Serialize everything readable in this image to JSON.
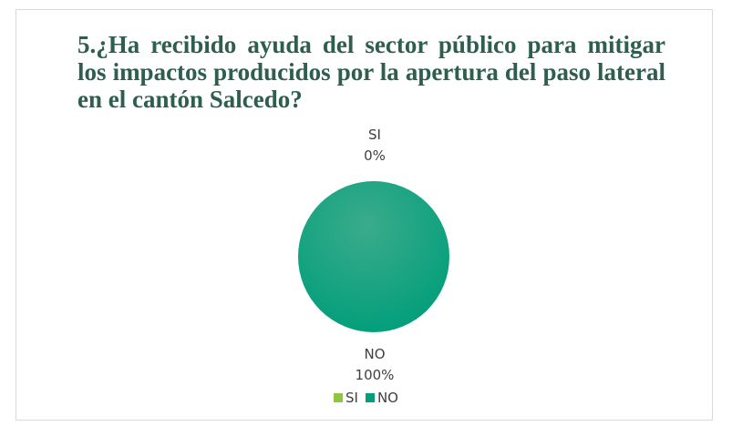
{
  "chart_data": {
    "type": "pie",
    "title": "5.¿Ha recibido ayuda del sector público para mitigar los impactos producidos por la apertura del paso lateral en el cantón Salcedo?",
    "categories": [
      "SI",
      "NO"
    ],
    "values": [
      0,
      100
    ],
    "data_labels": [
      {
        "category": "SI",
        "percent": "0%"
      },
      {
        "category": "NO",
        "percent": "100%"
      }
    ],
    "colors": [
      "#8dc63f",
      "#009e7a"
    ],
    "legend": {
      "placement": "bottom",
      "entries": [
        "SI",
        "NO"
      ]
    }
  }
}
